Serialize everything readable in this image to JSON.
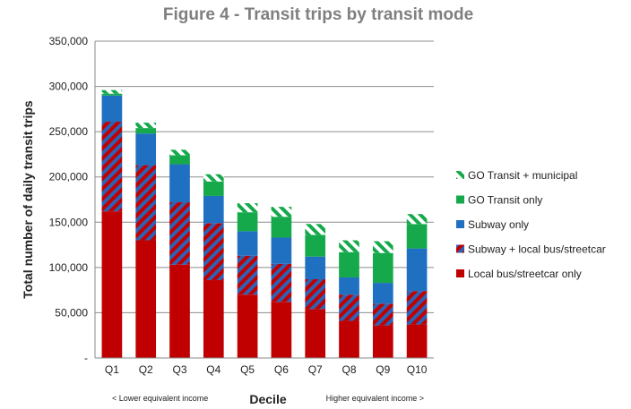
{
  "chart_data": {
    "type": "bar",
    "stacked": true,
    "title": "Figure 4 - Transit trips by transit mode",
    "xlabel": "Decile",
    "ylabel": "Total number of daily transit trips",
    "x_note_left": "< Lower equivalent income",
    "x_note_right": "Higher equivalent income >",
    "categories": [
      "Q1",
      "Q2",
      "Q3",
      "Q4",
      "Q5",
      "Q6",
      "Q7",
      "Q8",
      "Q9",
      "Q10"
    ],
    "ylim": [
      0,
      350000
    ],
    "yticks": [
      0,
      50000,
      100000,
      150000,
      200000,
      250000,
      300000,
      350000
    ],
    "ytick_labels": [
      "-",
      "50,000",
      "100,000",
      "150,000",
      "200,000",
      "250,000",
      "300,000",
      "350,000"
    ],
    "grid": true,
    "legend_position": "right",
    "series": [
      {
        "name": "Local bus/streetcar only",
        "values": [
          162000,
          130000,
          103000,
          86000,
          70000,
          62000,
          54000,
          41000,
          36000,
          37000
        ],
        "color": "#c00000",
        "pattern": "solid"
      },
      {
        "name": "Subway + local bus/streetcar",
        "values": [
          99000,
          83000,
          69000,
          63000,
          43000,
          42000,
          33000,
          29000,
          24000,
          37000
        ],
        "color": "#2e62b4",
        "color2": "#c00000",
        "pattern": "stripe"
      },
      {
        "name": "Subway only",
        "values": [
          29000,
          35000,
          42000,
          30000,
          27000,
          29000,
          25000,
          19000,
          23000,
          47000
        ],
        "color": "#1f70c1",
        "pattern": "solid"
      },
      {
        "name": "GO Transit only",
        "values": [
          2000,
          6000,
          10000,
          16000,
          21000,
          23000,
          24000,
          28000,
          33000,
          27000
        ],
        "color": "#16a94c",
        "pattern": "solid"
      },
      {
        "name": "GO Transit + municipal",
        "values": [
          4000,
          6000,
          6000,
          8000,
          10000,
          11000,
          12000,
          13000,
          13000,
          11000
        ],
        "color": "#16a94c",
        "color2": "#ffffff",
        "pattern": "stripe"
      }
    ],
    "legend_order": [
      "GO Transit + municipal",
      "GO Transit only",
      "Subway only",
      "Subway + local bus/streetcar",
      "Local bus/streetcar only"
    ]
  }
}
